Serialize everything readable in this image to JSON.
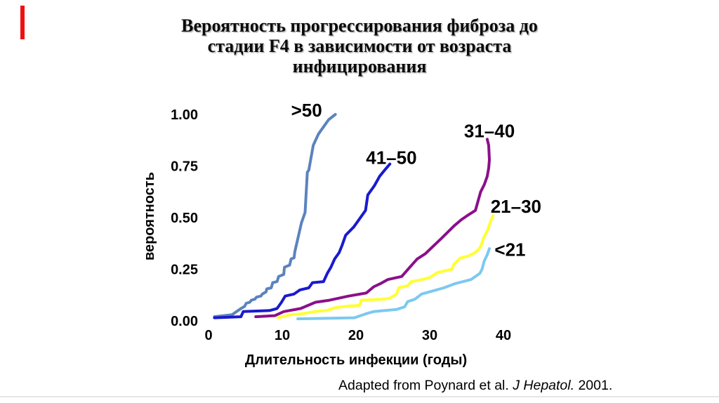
{
  "slide": {
    "title_lines": [
      "Вероятность прогрессирования фиброза до",
      "стадии F4 в зависимости от возраста",
      "инфицирования"
    ],
    "citation": {
      "prefix": "Adapted from Poynard et al. ",
      "journal_italic": "J Hepatol.",
      "suffix": " 2001."
    },
    "accent_bar_color": "#ee1111"
  },
  "chart_data": {
    "type": "line",
    "title": "Вероятность прогрессирования фиброза до стадии F4 в зависимости от возраста инфицирования",
    "xlabel": "Длительность инфекции (годы)",
    "ylabel": "вероятность",
    "xlim": [
      0,
      40
    ],
    "ylim": [
      0,
      1
    ],
    "grid": false,
    "axis_lines_visible": false,
    "legend": "direct-line-labels",
    "x_axis": {
      "ticks": [
        {
          "label": "0",
          "value": 0
        },
        {
          "label": "10",
          "value": 10
        },
        {
          "label": "20",
          "value": 20
        },
        {
          "label": "30",
          "value": 30
        },
        {
          "label": "40",
          "value": 40
        }
      ]
    },
    "y_axis": {
      "ticks": [
        {
          "label": "0.00",
          "value": 0
        },
        {
          "label": "0.25",
          "value": 0.25
        },
        {
          "label": "0.50",
          "value": 0.5
        },
        {
          "label": "0.75",
          "value": 0.75
        },
        {
          "label": "1.00",
          "value": 1
        }
      ]
    },
    "series": [
      {
        "id": "over-50",
        "name": ">50",
        "age_group_years": ">50",
        "color": "#5b83be",
        "label_pos": {
          "x": 13.3,
          "p": 1.02
        },
        "points": [
          [
            0.8,
            0.02
          ],
          [
            3.2,
            0.03
          ],
          [
            4.4,
            0.06
          ],
          [
            4.9,
            0.07
          ],
          [
            5.1,
            0.085
          ],
          [
            5.6,
            0.09
          ],
          [
            5.8,
            0.1
          ],
          [
            6.3,
            0.105
          ],
          [
            6.5,
            0.115
          ],
          [
            7.1,
            0.12
          ],
          [
            7.3,
            0.13
          ],
          [
            7.8,
            0.14
          ],
          [
            7.9,
            0.155
          ],
          [
            8.5,
            0.16
          ],
          [
            8.7,
            0.185
          ],
          [
            9.3,
            0.19
          ],
          [
            9.5,
            0.215
          ],
          [
            10.2,
            0.225
          ],
          [
            10.3,
            0.26
          ],
          [
            11.0,
            0.27
          ],
          [
            11.2,
            0.3
          ],
          [
            11.6,
            0.305
          ],
          [
            11.7,
            0.335
          ],
          [
            12.6,
            0.475
          ],
          [
            13.1,
            0.525
          ],
          [
            13.4,
            0.72
          ],
          [
            13.6,
            0.73
          ],
          [
            14.2,
            0.85
          ],
          [
            14.9,
            0.905
          ],
          [
            15.5,
            0.935
          ],
          [
            16.3,
            0.975
          ],
          [
            17.2,
            1.0
          ]
        ]
      },
      {
        "id": "41-50",
        "name": "41–50",
        "age_group_years": "41–50",
        "color": "#1a1acd",
        "label_pos": {
          "x": 24.8,
          "p": 0.79
        },
        "points": [
          [
            0.8,
            0.015
          ],
          [
            4.4,
            0.02
          ],
          [
            4.7,
            0.045
          ],
          [
            8.3,
            0.05
          ],
          [
            9.3,
            0.06
          ],
          [
            9.9,
            0.09
          ],
          [
            10.4,
            0.12
          ],
          [
            11.6,
            0.13
          ],
          [
            12.4,
            0.15
          ],
          [
            13.6,
            0.16
          ],
          [
            14.1,
            0.185
          ],
          [
            15.6,
            0.19
          ],
          [
            16.1,
            0.23
          ],
          [
            16.6,
            0.26
          ],
          [
            17.1,
            0.3
          ],
          [
            17.7,
            0.33
          ],
          [
            18.1,
            0.365
          ],
          [
            18.6,
            0.415
          ],
          [
            19.7,
            0.455
          ],
          [
            21.3,
            0.535
          ],
          [
            21.6,
            0.61
          ],
          [
            22.5,
            0.655
          ],
          [
            23.2,
            0.7
          ],
          [
            24.0,
            0.735
          ],
          [
            24.6,
            0.76
          ]
        ]
      },
      {
        "id": "31-40",
        "name": "31–40",
        "age_group_years": "31–40",
        "color": "#8b0f8b",
        "label_pos": {
          "x": 38.1,
          "p": 0.92
        },
        "points": [
          [
            6.4,
            0.02
          ],
          [
            9.0,
            0.025
          ],
          [
            10.2,
            0.045
          ],
          [
            12.5,
            0.06
          ],
          [
            14.5,
            0.09
          ],
          [
            16.4,
            0.1
          ],
          [
            19.0,
            0.12
          ],
          [
            21.4,
            0.135
          ],
          [
            22.4,
            0.165
          ],
          [
            23.3,
            0.18
          ],
          [
            24.3,
            0.2
          ],
          [
            26.2,
            0.215
          ],
          [
            27.3,
            0.26
          ],
          [
            28.3,
            0.3
          ],
          [
            29.4,
            0.325
          ],
          [
            31.6,
            0.4
          ],
          [
            33.3,
            0.46
          ],
          [
            34.3,
            0.49
          ],
          [
            35.1,
            0.51
          ],
          [
            36.2,
            0.535
          ],
          [
            36.9,
            0.625
          ],
          [
            37.4,
            0.66
          ],
          [
            37.8,
            0.7
          ],
          [
            38.0,
            0.74
          ],
          [
            38.1,
            0.78
          ],
          [
            38.0,
            0.85
          ],
          [
            37.8,
            0.88
          ]
        ]
      },
      {
        "id": "21-30",
        "name": "21–30",
        "age_group_years": "21–30",
        "color": "#ffff33",
        "label_pos": {
          "x": 41.7,
          "p": 0.555
        },
        "points": [
          [
            9.4,
            0.015
          ],
          [
            11.2,
            0.03
          ],
          [
            12.8,
            0.035
          ],
          [
            14.4,
            0.045
          ],
          [
            16.0,
            0.05
          ],
          [
            17.3,
            0.065
          ],
          [
            19.2,
            0.072
          ],
          [
            20.5,
            0.075
          ],
          [
            20.7,
            0.1
          ],
          [
            23.7,
            0.105
          ],
          [
            24.6,
            0.11
          ],
          [
            25.5,
            0.13
          ],
          [
            25.8,
            0.16
          ],
          [
            27.0,
            0.17
          ],
          [
            27.5,
            0.19
          ],
          [
            29.0,
            0.2
          ],
          [
            30.0,
            0.21
          ],
          [
            31.1,
            0.235
          ],
          [
            33.0,
            0.25
          ],
          [
            33.3,
            0.275
          ],
          [
            34.2,
            0.305
          ],
          [
            35.3,
            0.315
          ],
          [
            36.1,
            0.33
          ],
          [
            36.6,
            0.345
          ],
          [
            36.9,
            0.36
          ],
          [
            37.3,
            0.4
          ],
          [
            37.9,
            0.445
          ],
          [
            38.3,
            0.485
          ],
          [
            38.6,
            0.51
          ]
        ]
      },
      {
        "id": "under-21",
        "name": "<21",
        "age_group_years": "<21",
        "color": "#7cc9f0",
        "label_pos": {
          "x": 40.9,
          "p": 0.345
        },
        "points": [
          [
            12.1,
            0.01
          ],
          [
            19.8,
            0.015
          ],
          [
            21.4,
            0.035
          ],
          [
            22.4,
            0.045
          ],
          [
            25.5,
            0.055
          ],
          [
            26.6,
            0.068
          ],
          [
            27.0,
            0.093
          ],
          [
            28.0,
            0.105
          ],
          [
            28.9,
            0.13
          ],
          [
            30.4,
            0.145
          ],
          [
            31.9,
            0.16
          ],
          [
            33.4,
            0.18
          ],
          [
            35.6,
            0.2
          ],
          [
            36.6,
            0.225
          ],
          [
            36.8,
            0.23
          ],
          [
            37.1,
            0.25
          ],
          [
            37.4,
            0.29
          ],
          [
            37.8,
            0.32
          ],
          [
            38.1,
            0.35
          ]
        ]
      }
    ]
  }
}
